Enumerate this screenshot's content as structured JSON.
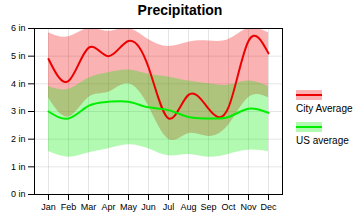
{
  "chart_data": {
    "type": "line",
    "title": "Precipitation",
    "categories": [
      "Jan",
      "Feb",
      "Mar",
      "Apr",
      "May",
      "Jun",
      "Jul",
      "Aug",
      "Sep",
      "Oct",
      "Nov",
      "Dec"
    ],
    "series": [
      {
        "name": "City Average",
        "color": "#ee0000",
        "values": [
          4.9,
          4.1,
          5.3,
          5.0,
          5.55,
          4.6,
          2.75,
          3.6,
          3.1,
          3.15,
          5.55,
          5.1
        ],
        "lower": [
          3.5,
          2.8,
          3.5,
          3.7,
          4.0,
          3.2,
          2.0,
          2.2,
          2.1,
          2.5,
          3.5,
          3.5
        ],
        "upper": [
          5.85,
          5.7,
          6.0,
          5.9,
          6.0,
          5.6,
          5.35,
          5.5,
          5.55,
          5.6,
          6.0,
          5.85
        ]
      },
      {
        "name": "US average",
        "color": "#00ee00",
        "values": [
          3.0,
          2.75,
          3.2,
          3.35,
          3.35,
          3.15,
          3.05,
          2.8,
          2.75,
          2.8,
          3.1,
          2.95
        ],
        "lower": [
          1.55,
          1.35,
          1.5,
          1.65,
          1.8,
          1.65,
          1.4,
          1.45,
          1.35,
          1.45,
          1.6,
          1.55
        ],
        "upper": [
          3.9,
          3.8,
          4.2,
          4.4,
          4.5,
          4.35,
          4.25,
          4.1,
          4.0,
          3.95,
          4.1,
          3.9
        ]
      }
    ],
    "ylim": [
      0,
      6
    ],
    "yticks": [
      {
        "value": 0,
        "label": "0 in"
      },
      {
        "value": 1,
        "label": "1 in"
      },
      {
        "value": 2,
        "label": "2 in"
      },
      {
        "value": 3,
        "label": "3 in"
      },
      {
        "value": 4,
        "label": "4 in"
      },
      {
        "value": 5,
        "label": "5 in"
      },
      {
        "value": 6,
        "label": "6 in"
      }
    ],
    "grid": true,
    "legend": "right"
  }
}
